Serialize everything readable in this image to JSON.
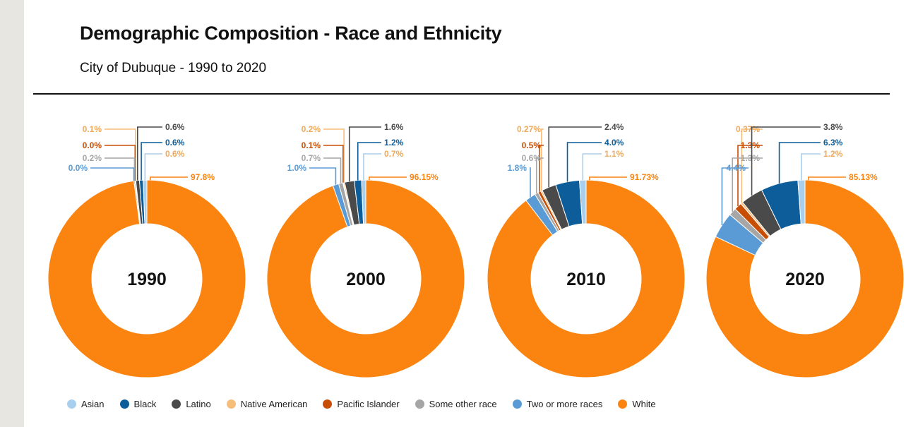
{
  "header": {
    "title": "Demographic Composition - Race and Ethnicity",
    "subtitle": "City of Dubuque - 1990 to 2020"
  },
  "chart_data": {
    "type": "pie",
    "style": "donut",
    "title": "Demographic Composition - Race and Ethnicity",
    "subtitle": "City of Dubuque - 1990 to 2020",
    "categories": [
      "Asian",
      "Black",
      "Latino",
      "Native American",
      "Pacific Islander",
      "Some other race",
      "Two or more races",
      "White"
    ],
    "colors": {
      "Asian": "#a9cfee",
      "Black": "#0c5d9a",
      "Latino": "#4a4a4a",
      "Native American": "#f7bd7a",
      "Pacific Islander": "#c84e06",
      "Some other race": "#a6a6a6",
      "Two or more races": "#5b9bd5",
      "White": "#fb8411"
    },
    "legend_position": "bottom",
    "charts": [
      {
        "year": "1990",
        "slices": [
          {
            "category": "White",
            "value": 97.8,
            "label": "97.8%"
          },
          {
            "category": "Asian",
            "value": 0.6,
            "label": "0.6%"
          },
          {
            "category": "Black",
            "value": 0.6,
            "label": "0.6%"
          },
          {
            "category": "Latino",
            "value": 0.6,
            "label": "0.6%"
          },
          {
            "category": "Native American",
            "value": 0.1,
            "label": "0.1%"
          },
          {
            "category": "Pacific Islander",
            "value": 0.0,
            "label": "0.0%"
          },
          {
            "category": "Some other race",
            "value": 0.2,
            "label": "0.2%"
          },
          {
            "category": "Two or more races",
            "value": 0.0,
            "label": "0.0%"
          }
        ]
      },
      {
        "year": "2000",
        "slices": [
          {
            "category": "White",
            "value": 96.15,
            "label": "96.15%"
          },
          {
            "category": "Asian",
            "value": 0.7,
            "label": "0.7%"
          },
          {
            "category": "Black",
            "value": 1.2,
            "label": "1.2%"
          },
          {
            "category": "Latino",
            "value": 1.6,
            "label": "1.6%"
          },
          {
            "category": "Native American",
            "value": 0.2,
            "label": "0.2%"
          },
          {
            "category": "Pacific Islander",
            "value": 0.1,
            "label": "0.1%"
          },
          {
            "category": "Some other race",
            "value": 0.7,
            "label": "0.7%"
          },
          {
            "category": "Two or more races",
            "value": 1.0,
            "label": "1.0%"
          }
        ]
      },
      {
        "year": "2010",
        "slices": [
          {
            "category": "White",
            "value": 91.73,
            "label": "91.73%"
          },
          {
            "category": "Asian",
            "value": 1.1,
            "label": "1.1%"
          },
          {
            "category": "Black",
            "value": 4.0,
            "label": "4.0%"
          },
          {
            "category": "Latino",
            "value": 2.4,
            "label": "2.4%"
          },
          {
            "category": "Native American",
            "value": 0.27,
            "label": "0.27%"
          },
          {
            "category": "Pacific Islander",
            "value": 0.5,
            "label": "0.5%"
          },
          {
            "category": "Some other race",
            "value": 0.6,
            "label": "0.6%"
          },
          {
            "category": "Two or more races",
            "value": 1.8,
            "label": "1.8%"
          }
        ]
      },
      {
        "year": "2020",
        "slices": [
          {
            "category": "White",
            "value": 85.13,
            "label": "85.13%"
          },
          {
            "category": "Asian",
            "value": 1.2,
            "label": "1.2%"
          },
          {
            "category": "Black",
            "value": 6.3,
            "label": "6.3%"
          },
          {
            "category": "Latino",
            "value": 3.8,
            "label": "3.8%"
          },
          {
            "category": "Native American",
            "value": 0.37,
            "label": "0.37%"
          },
          {
            "category": "Pacific Islander",
            "value": 1.3,
            "label": "1.3%"
          },
          {
            "category": "Some other race",
            "value": 1.3,
            "label": "1.3%"
          },
          {
            "category": "Two or more races",
            "value": 4.4,
            "label": "4.4%"
          }
        ]
      }
    ]
  }
}
